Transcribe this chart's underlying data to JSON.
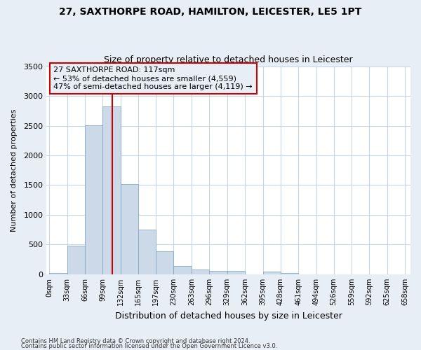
{
  "title1": "27, SAXTHORPE ROAD, HAMILTON, LEICESTER, LE5 1PT",
  "title2": "Size of property relative to detached houses in Leicester",
  "xlabel": "Distribution of detached houses by size in Leicester",
  "ylabel": "Number of detached properties",
  "bar_edges": [
    0,
    33,
    66,
    99,
    132,
    165,
    197,
    230,
    263,
    296,
    329,
    362,
    395,
    428,
    461,
    494,
    526,
    559,
    592,
    625,
    658
  ],
  "bar_heights": [
    20,
    480,
    2510,
    2820,
    1520,
    750,
    390,
    140,
    80,
    55,
    55,
    0,
    50,
    20,
    0,
    0,
    0,
    0,
    0,
    0
  ],
  "bar_color": "#ccd9e8",
  "bar_edgecolor": "#7aa0c0",
  "property_size": 117,
  "annotation_line1": "27 SAXTHORPE ROAD: 117sqm",
  "annotation_line2": "← 53% of detached houses are smaller (4,559)",
  "annotation_line3": "47% of semi-detached houses are larger (4,119) →",
  "vline_color": "#cc0000",
  "annotation_box_edgecolor": "#cc0000",
  "ylim": [
    0,
    3500
  ],
  "yticks": [
    0,
    500,
    1000,
    1500,
    2000,
    2500,
    3000,
    3500
  ],
  "background_color": "#e8eef5",
  "plot_bg_color": "#ffffff",
  "grid_color": "#c8d4e0",
  "footer1": "Contains HM Land Registry data © Crown copyright and database right 2024.",
  "footer2": "Contains public sector information licensed under the Open Government Licence v3.0."
}
